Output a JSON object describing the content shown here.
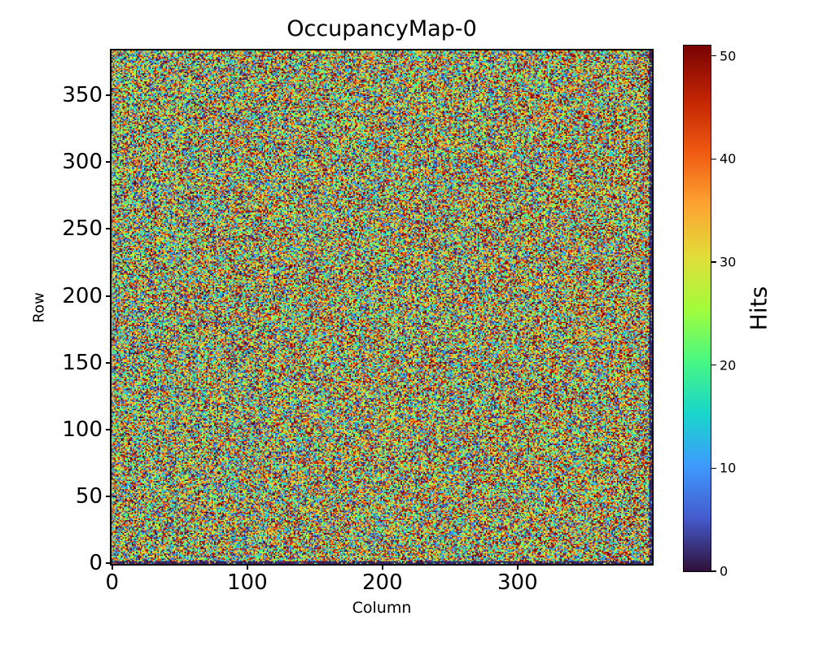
{
  "title": "OccupancyMap-0",
  "axes": {
    "xlabel": "Column",
    "ylabel": "Row",
    "x_ticks": [
      0,
      100,
      200,
      300
    ],
    "y_ticks": [
      0,
      50,
      100,
      150,
      200,
      250,
      300,
      350
    ]
  },
  "colorbar": {
    "label": "Hits",
    "ticks": [
      0,
      10,
      20,
      30,
      40,
      50
    ],
    "vmin": 0,
    "vmax": 51
  },
  "chart_data": {
    "type": "heatmap",
    "title": "OccupancyMap-0",
    "xlabel": "Column",
    "ylabel": "Row",
    "zlabel": "Hits",
    "n_cols": 400,
    "n_rows": 384,
    "x_range": [
      0,
      400
    ],
    "y_range": [
      0,
      384
    ],
    "z_range": [
      0,
      51
    ],
    "grid": false,
    "legend": false,
    "colorbar_position": "right",
    "colormap": "turbo",
    "colormap_stops": [
      [
        0.0,
        48,
        18,
        59
      ],
      [
        0.1,
        69,
        91,
        205
      ],
      [
        0.2,
        62,
        155,
        254
      ],
      [
        0.3,
        24,
        214,
        203
      ],
      [
        0.4,
        72,
        248,
        130
      ],
      [
        0.5,
        164,
        252,
        59
      ],
      [
        0.6,
        226,
        220,
        56
      ],
      [
        0.7,
        254,
        163,
        49
      ],
      [
        0.8,
        239,
        89,
        17
      ],
      [
        0.9,
        194,
        36,
        3
      ],
      [
        1.0,
        122,
        4,
        3
      ]
    ],
    "data_description": "Per-pixel hit occupancy noise, approximately uniform between 0 and 51 hits across the full 400x384 matrix, with a slight increase of mean occupancy toward higher column numbers; the bottom two rows and the right-most two columns are mostly near zero (dark) with sparse hit pixels.",
    "edge_low_rows": 2,
    "edge_low_cols": 2,
    "column_bias_hits": 5,
    "seed": 20240613
  }
}
